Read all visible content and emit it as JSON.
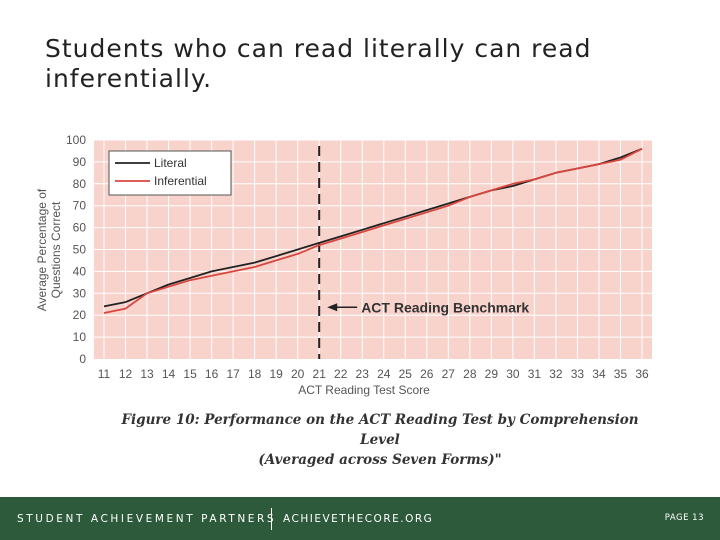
{
  "slide": {
    "title_line1": "Students who can read literally can read",
    "title_line2": "inferentially."
  },
  "chart_data": {
    "type": "line",
    "title": "",
    "xlabel": "ACT Reading Test Score",
    "ylabel_line1": "Average Percentage of",
    "ylabel_line2": "Questions Correct",
    "xlim": [
      11,
      36
    ],
    "ylim": [
      0,
      100
    ],
    "x_ticks": [
      "11",
      "12",
      "13",
      "14",
      "15",
      "16",
      "17",
      "18",
      "19",
      "20",
      "21",
      "22",
      "23",
      "24",
      "25",
      "26",
      "27",
      "28",
      "29",
      "30",
      "31",
      "32",
      "33",
      "34",
      "35",
      "36"
    ],
    "y_ticks": [
      "0",
      "10",
      "20",
      "30",
      "40",
      "50",
      "60",
      "70",
      "80",
      "90",
      "100"
    ],
    "x": [
      11,
      12,
      13,
      14,
      15,
      16,
      17,
      18,
      19,
      20,
      21,
      22,
      23,
      24,
      25,
      26,
      27,
      28,
      29,
      30,
      31,
      32,
      33,
      34,
      35,
      36
    ],
    "series": [
      {
        "name": "Literal",
        "color": "#222222",
        "values": [
          24,
          26,
          30,
          34,
          37,
          40,
          42,
          44,
          47,
          50,
          53,
          56,
          59,
          62,
          65,
          68,
          71,
          74,
          77,
          79,
          82,
          85,
          87,
          89,
          92,
          96
        ]
      },
      {
        "name": "Inferential",
        "color": "#d9463e",
        "values": [
          21,
          23,
          30,
          33,
          36,
          38,
          40,
          42,
          45,
          48,
          52,
          55,
          58,
          61,
          64,
          67,
          70,
          74,
          77,
          80,
          82,
          85,
          87,
          89,
          91,
          96
        ]
      }
    ],
    "legend_position": "top-left",
    "grid": true,
    "plot_background": "#f8d3cc",
    "annotation": {
      "x": 21,
      "label": "ACT Reading Benchmark",
      "arrow_y": 25
    }
  },
  "figure": {
    "caption_line1": "Figure 10: Performance on the ACT Reading Test by Comprehension Level",
    "caption_line2": "(Averaged across Seven Forms)\""
  },
  "footer": {
    "org_name": "STUDENT ACHIEVEMENT PARTNERS",
    "website": "ACHIEVETHECORE.ORG",
    "page_label": "PAGE 13"
  }
}
